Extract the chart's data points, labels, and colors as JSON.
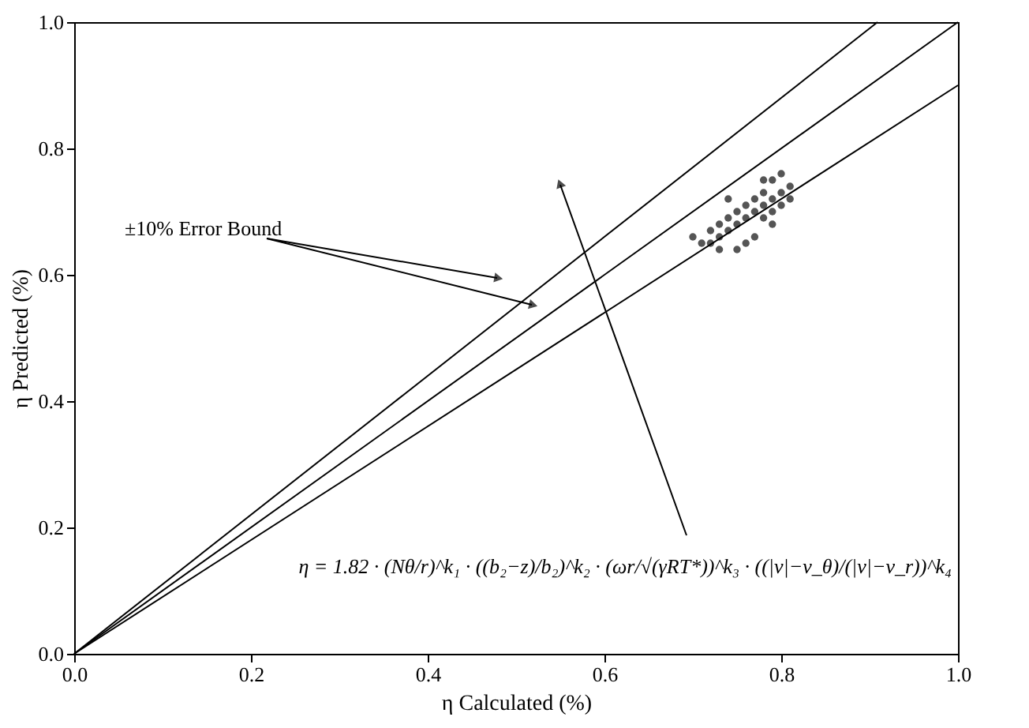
{
  "chart_data": {
    "type": "scatter",
    "xlabel": "η Calculated (%)",
    "ylabel": "η Predicted (%)",
    "xlim": [
      0,
      1
    ],
    "ylim": [
      0,
      1
    ],
    "xticks": [
      {
        "value": 0,
        "label": "0.0"
      },
      {
        "value": 0.2,
        "label": "0.2"
      },
      {
        "value": 0.4,
        "label": "0.4"
      },
      {
        "value": 0.6,
        "label": "0.6"
      },
      {
        "value": 0.8,
        "label": "0.8"
      },
      {
        "value": 1,
        "label": "1.0"
      }
    ],
    "yticks": [
      {
        "value": 0,
        "label": "0.0"
      },
      {
        "value": 0.2,
        "label": "0.2"
      },
      {
        "value": 0.4,
        "label": "0.4"
      },
      {
        "value": 0.6,
        "label": "0.6"
      },
      {
        "value": 0.8,
        "label": "0.8"
      },
      {
        "value": 1,
        "label": "1.0"
      }
    ],
    "grid": false,
    "legend": false,
    "series": [
      {
        "marker": "circle",
        "color": "#555555",
        "x": [
          0.7,
          0.71,
          0.72,
          0.73,
          0.73,
          0.74,
          0.74,
          0.75,
          0.75,
          0.76,
          0.76,
          0.77,
          0.77,
          0.78,
          0.78,
          0.78,
          0.79,
          0.79,
          0.79,
          0.8,
          0.8,
          0.8,
          0.81,
          0.81,
          0.76,
          0.77,
          0.75,
          0.73,
          0.72,
          0.74,
          0.79,
          0.78
        ],
        "values": [
          0.66,
          0.65,
          0.67,
          0.66,
          0.68,
          0.67,
          0.69,
          0.68,
          0.7,
          0.69,
          0.71,
          0.7,
          0.72,
          0.69,
          0.71,
          0.73,
          0.7,
          0.72,
          0.75,
          0.71,
          0.73,
          0.76,
          0.72,
          0.74,
          0.65,
          0.66,
          0.64,
          0.64,
          0.65,
          0.72,
          0.68,
          0.75
        ]
      },
      {
        "type": "line",
        "marker": "none",
        "color": "#000000",
        "x": [
          0,
          0.909
        ],
        "values": [
          0,
          1
        ]
      },
      {
        "type": "line",
        "marker": "none",
        "color": "#000000",
        "x": [
          0,
          1
        ],
        "values": [
          0,
          1
        ]
      },
      {
        "type": "line",
        "marker": "none",
        "color": "#000000",
        "x": [
          0,
          1
        ],
        "values": [
          0,
          0.9
        ]
      }
    ],
    "annotations": [
      "±10% Error Bound",
      "η = 1.82 · (Nθ/r)^k₁ · ((b₂−z)/b₂)^k₂ · (ωr/√(γRT*))^k₃ · ((|v|−v_θ)/(|v|−v_r))^k₄"
    ]
  }
}
